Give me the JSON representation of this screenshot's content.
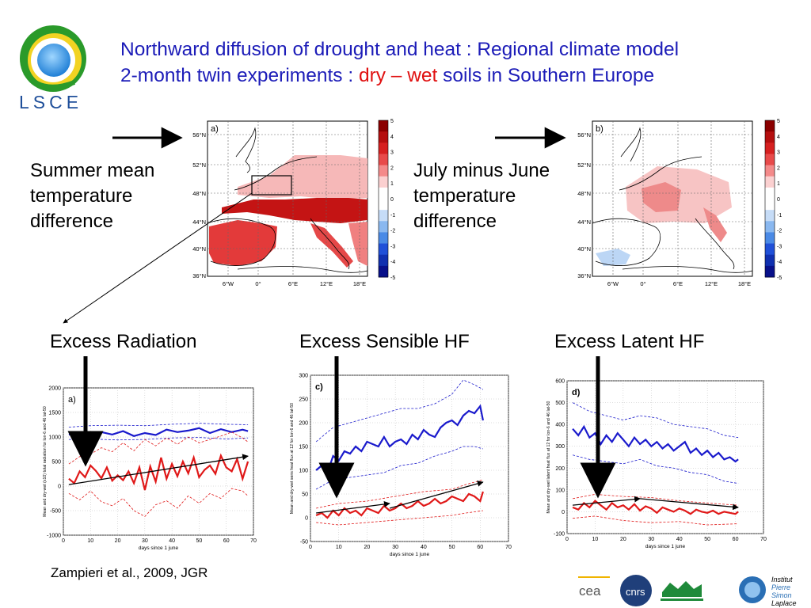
{
  "title": {
    "line1": "Northward diffusion of drought and heat : Regional climate model",
    "line2_prefix": "2-month twin experiments : ",
    "dry": "dry",
    "dash": " – ",
    "wet": "wet",
    "line2_suffix": " soils in Southern Europe"
  },
  "logo": {
    "text": "LSCE"
  },
  "labels": {
    "summer": [
      "Summer mean",
      "temperature",
      "difference"
    ],
    "july": [
      "July minus June",
      "temperature",
      "difference"
    ],
    "radiation": "Excess Radiation",
    "sensible": "Excess Sensible HF",
    "latent": "Excess Latent HF"
  },
  "reference": "Zampieri et al., 2009, JGR",
  "maps": {
    "lat_ticks": [
      "56°N",
      "52°N",
      "48°N",
      "44°N",
      "40°N",
      "36°N"
    ],
    "lon_ticks": [
      "6°W",
      "0°",
      "6°E",
      "12°E",
      "18°E"
    ],
    "colorbar_ticks": [
      "5",
      "4",
      "3",
      "2",
      "1",
      "0",
      "-1",
      "-2",
      "-3",
      "-4",
      "-5"
    ],
    "panel_a": "a)",
    "panel_b": "b)"
  },
  "colors": {
    "title_blue": "#1c1cb8",
    "dry_red": "#e01010",
    "series_blue": "#1a1acc",
    "series_red": "#e01818"
  },
  "chart_data": [
    {
      "type": "line",
      "panel": "a)",
      "xlabel": "days since 1 june",
      "ylabel": "Mean and dry-wet (x10) total radiation for lon-6 and 46 lat-50",
      "xlim": [
        0,
        70
      ],
      "ylim": [
        -1000,
        2000
      ],
      "xticks": [
        0,
        10,
        20,
        30,
        40,
        50,
        60,
        70
      ],
      "yticks": [
        -1000,
        -500,
        0,
        500,
        1000,
        1500,
        2000
      ],
      "series": [
        {
          "color": "#1a1acc",
          "style": "solid",
          "x": [
            2,
            6,
            10,
            14,
            18,
            22,
            26,
            30,
            34,
            38,
            42,
            46,
            50,
            54,
            58,
            62,
            66,
            68
          ],
          "y": [
            1050,
            1080,
            1020,
            1100,
            1050,
            1120,
            1020,
            1080,
            1040,
            1150,
            1100,
            1130,
            1180,
            1080,
            1160,
            1100,
            1150,
            1120
          ]
        },
        {
          "color": "#1a1acc",
          "style": "dashed",
          "x": [
            2,
            10,
            20,
            30,
            40,
            50,
            60,
            68
          ],
          "y": [
            1200,
            1230,
            1240,
            1230,
            1260,
            1280,
            1260,
            1250
          ]
        },
        {
          "color": "#1a1acc",
          "style": "dashed",
          "x": [
            2,
            10,
            20,
            30,
            40,
            50,
            60,
            68
          ],
          "y": [
            950,
            960,
            940,
            950,
            980,
            990,
            960,
            980
          ]
        },
        {
          "color": "#e01818",
          "style": "solid",
          "x": [
            2,
            4,
            6,
            8,
            10,
            12,
            14,
            16,
            18,
            20,
            22,
            24,
            26,
            28,
            30,
            32,
            34,
            36,
            38,
            40,
            42,
            44,
            46,
            48,
            50,
            52,
            54,
            56,
            58,
            60,
            62,
            64,
            66,
            68
          ],
          "y": [
            150,
            60,
            300,
            180,
            420,
            310,
            160,
            380,
            110,
            220,
            120,
            300,
            60,
            380,
            -80,
            400,
            90,
            580,
            150,
            450,
            200,
            500,
            260,
            580,
            180,
            330,
            420,
            250,
            620,
            380,
            300,
            550,
            150,
            500
          ]
        },
        {
          "color": "#e01818",
          "style": "dashed",
          "x": [
            2,
            6,
            10,
            14,
            18,
            22,
            26,
            30,
            34,
            38,
            42,
            46,
            50,
            54,
            58,
            62,
            66,
            68
          ],
          "y": [
            450,
            600,
            650,
            780,
            700,
            880,
            720,
            950,
            820,
            980,
            850,
            1000,
            880,
            950,
            1020,
            1100,
            980,
            900
          ]
        },
        {
          "color": "#e01818",
          "style": "dashed",
          "x": [
            2,
            6,
            10,
            14,
            18,
            22,
            26,
            30,
            34,
            38,
            42,
            46,
            50,
            54,
            58,
            62,
            66,
            68
          ],
          "y": [
            -150,
            -280,
            -100,
            -320,
            -400,
            -250,
            -500,
            -620,
            -380,
            -300,
            -450,
            -200,
            -350,
            -150,
            -250,
            -50,
            -100,
            -200
          ]
        }
      ],
      "trend": {
        "x": [
          2,
          68
        ],
        "y": [
          30,
          610
        ]
      }
    },
    {
      "type": "line",
      "panel": "c)",
      "xlabel": "days since 1 june",
      "ylabel": "Mean and dry-wet sens heat flux at 12 for lon-6 and 46 lat-50",
      "xlim": [
        0,
        70
      ],
      "ylim": [
        -50,
        300
      ],
      "xticks": [
        0,
        10,
        20,
        30,
        40,
        50,
        60,
        70
      ],
      "yticks": [
        -50,
        0,
        50,
        100,
        150,
        200,
        250,
        300
      ],
      "series": [
        {
          "color": "#1a1acc",
          "style": "solid",
          "x": [
            2,
            4,
            6,
            8,
            10,
            12,
            14,
            16,
            18,
            20,
            22,
            24,
            26,
            28,
            30,
            32,
            34,
            36,
            38,
            40,
            42,
            44,
            46,
            48,
            50,
            52,
            54,
            56,
            58,
            60,
            61
          ],
          "y": [
            100,
            110,
            95,
            130,
            120,
            140,
            135,
            150,
            140,
            160,
            155,
            150,
            170,
            150,
            160,
            165,
            155,
            175,
            165,
            185,
            175,
            170,
            190,
            200,
            205,
            195,
            215,
            225,
            220,
            235,
            205
          ]
        },
        {
          "color": "#1a1acc",
          "style": "dashed",
          "x": [
            2,
            8,
            14,
            20,
            26,
            32,
            38,
            44,
            50,
            54,
            58,
            61
          ],
          "y": [
            160,
            190,
            200,
            210,
            220,
            230,
            230,
            240,
            260,
            290,
            280,
            270
          ]
        },
        {
          "color": "#1a1acc",
          "style": "dashed",
          "x": [
            2,
            8,
            14,
            20,
            26,
            32,
            38,
            44,
            50,
            54,
            58,
            61
          ],
          "y": [
            60,
            80,
            85,
            90,
            95,
            110,
            115,
            130,
            140,
            150,
            150,
            145
          ]
        },
        {
          "color": "#e01818",
          "style": "solid",
          "x": [
            2,
            4,
            6,
            8,
            10,
            12,
            14,
            16,
            18,
            20,
            22,
            24,
            26,
            28,
            30,
            32,
            34,
            36,
            38,
            40,
            42,
            44,
            46,
            48,
            50,
            52,
            54,
            56,
            58,
            60,
            61
          ],
          "y": [
            5,
            10,
            0,
            15,
            5,
            20,
            10,
            15,
            5,
            20,
            15,
            10,
            25,
            15,
            20,
            30,
            20,
            25,
            35,
            25,
            30,
            40,
            30,
            35,
            45,
            40,
            35,
            50,
            45,
            35,
            55
          ]
        },
        {
          "color": "#e01818",
          "style": "dashed",
          "x": [
            2,
            10,
            20,
            30,
            40,
            50,
            55,
            61
          ],
          "y": [
            20,
            30,
            35,
            45,
            55,
            60,
            70,
            80
          ]
        },
        {
          "color": "#e01818",
          "style": "dashed",
          "x": [
            2,
            10,
            20,
            30,
            40,
            50,
            55,
            61
          ],
          "y": [
            -10,
            -15,
            -10,
            -5,
            0,
            5,
            10,
            15
          ]
        }
      ],
      "trend": [
        {
          "x": [
            2,
            28
          ],
          "y": [
            10,
            30
          ]
        },
        {
          "x": [
            28,
            61
          ],
          "y": [
            20,
            75
          ]
        }
      ]
    },
    {
      "type": "line",
      "panel": "d)",
      "xlabel": "days since 1 june",
      "ylabel": "Mean and dry-wet latent heat flux at 12 for lon-6 and 46 lat-50",
      "xlim": [
        0,
        70
      ],
      "ylim": [
        -100,
        600
      ],
      "xticks": [
        0,
        10,
        20,
        30,
        40,
        50,
        60,
        70
      ],
      "yticks": [
        -100,
        0,
        100,
        200,
        300,
        400,
        500,
        600
      ],
      "series": [
        {
          "color": "#1a1acc",
          "style": "solid",
          "x": [
            2,
            4,
            6,
            8,
            10,
            12,
            14,
            16,
            18,
            20,
            22,
            24,
            26,
            28,
            30,
            32,
            34,
            36,
            38,
            40,
            42,
            44,
            46,
            48,
            50,
            52,
            54,
            56,
            58,
            60,
            61
          ],
          "y": [
            380,
            350,
            390,
            340,
            360,
            310,
            350,
            320,
            360,
            330,
            300,
            340,
            310,
            330,
            300,
            320,
            290,
            310,
            280,
            300,
            320,
            270,
            290,
            260,
            280,
            250,
            270,
            240,
            250,
            230,
            240
          ]
        },
        {
          "color": "#1a1acc",
          "style": "dashed",
          "x": [
            2,
            8,
            14,
            20,
            26,
            32,
            38,
            44,
            50,
            56,
            61
          ],
          "y": [
            500,
            460,
            440,
            420,
            440,
            430,
            400,
            390,
            380,
            350,
            340
          ]
        },
        {
          "color": "#1a1acc",
          "style": "dashed",
          "x": [
            2,
            8,
            14,
            20,
            26,
            32,
            38,
            44,
            50,
            56,
            61
          ],
          "y": [
            260,
            240,
            230,
            220,
            240,
            210,
            200,
            180,
            170,
            140,
            130
          ]
        },
        {
          "color": "#e01818",
          "style": "solid",
          "x": [
            2,
            4,
            6,
            8,
            10,
            12,
            14,
            16,
            18,
            20,
            22,
            24,
            26,
            28,
            30,
            32,
            34,
            36,
            38,
            40,
            42,
            44,
            46,
            48,
            50,
            52,
            54,
            56,
            58,
            60,
            61
          ],
          "y": [
            20,
            10,
            40,
            20,
            50,
            30,
            10,
            40,
            20,
            30,
            10,
            35,
            5,
            25,
            15,
            -5,
            20,
            10,
            0,
            15,
            5,
            -10,
            10,
            0,
            -5,
            5,
            -10,
            0,
            -5,
            -10,
            0
          ]
        },
        {
          "color": "#e01818",
          "style": "dashed",
          "x": [
            2,
            10,
            20,
            30,
            40,
            50,
            61
          ],
          "y": [
            60,
            80,
            70,
            65,
            50,
            40,
            30
          ]
        },
        {
          "color": "#e01818",
          "style": "dashed",
          "x": [
            2,
            10,
            20,
            30,
            40,
            50,
            61
          ],
          "y": [
            -30,
            -20,
            -40,
            -50,
            -45,
            -60,
            -55
          ]
        }
      ],
      "trend": [
        {
          "x": [
            2,
            26
          ],
          "y": [
            30,
            60
          ]
        },
        {
          "x": [
            26,
            61
          ],
          "y": [
            60,
            20
          ]
        }
      ]
    }
  ]
}
